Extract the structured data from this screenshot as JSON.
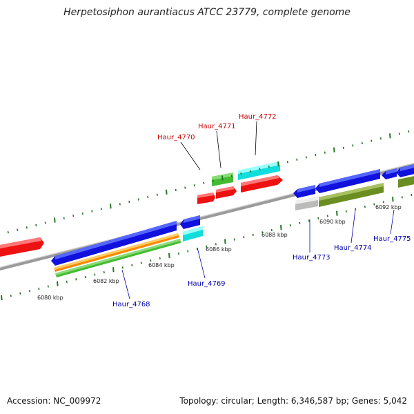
{
  "title": "Herpetosiphon aurantiacus ATCC 23779, complete genome",
  "footer": {
    "accession": "Accession: NC_009972",
    "summary": "Topology: circular; Length: 6,346,587 bp; Genes: 5,042"
  },
  "scale_labels": [
    "6080 kbp",
    "6082 kbp",
    "6084 kbp",
    "6086 kbp",
    "6088 kbp",
    "6090 kbp",
    "6092 kbp"
  ],
  "gene_labels": {
    "top": [
      "Haur_4770",
      "Haur_4771",
      "Haur_4772"
    ],
    "bottom": [
      "Haur_4768",
      "Haur_4769",
      "Haur_4773",
      "Haur_4774",
      "Haur_4775"
    ]
  },
  "colors": {
    "red": "#ee1111",
    "blue": "#1111dd",
    "cyan": "#11dddd",
    "green": "#44bb33",
    "orange": "#ff8800",
    "olive": "#6b8e23",
    "grey": "#bbbbbb",
    "top_label": "#cc0000",
    "bottom_label": "#0000aa",
    "tick": "#227722"
  }
}
